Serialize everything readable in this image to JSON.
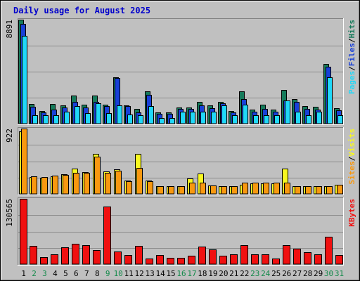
{
  "chart_data": {
    "type": "bar",
    "title": "Daily usage for August 2025",
    "x": [
      "1",
      "2",
      "3",
      "4",
      "5",
      "6",
      "7",
      "8",
      "9",
      "10",
      "11",
      "12",
      "13",
      "14",
      "15",
      "16",
      "17",
      "18",
      "19",
      "20",
      "21",
      "22",
      "23",
      "24",
      "25",
      "26",
      "27",
      "28",
      "29",
      "30",
      "31"
    ],
    "weekend_days": [
      "2",
      "3",
      "9",
      "10",
      "16",
      "17",
      "23",
      "24",
      "30",
      "31"
    ],
    "colors": {
      "hits": "#157a5a",
      "files": "#1840d8",
      "pages": "#20d8f8",
      "visits": "#f8f820",
      "sites": "#f89810",
      "kbytes": "#f01010",
      "weekday_tick": "#000000",
      "weekend_tick": "#138a4a",
      "plot_bg": "#c0c0c0"
    },
    "panels": [
      {
        "id": "hits",
        "max_label": "8891",
        "ylim": [
          0,
          8891
        ],
        "legend": [
          {
            "name": "Pages",
            "color": "#20d8f8"
          },
          {
            "sep": "/"
          },
          {
            "name": "Files",
            "color": "#1840d8"
          },
          {
            "sep": "/"
          },
          {
            "name": "Hits",
            "color": "#157a5a"
          }
        ],
        "series": [
          {
            "name": "Hits",
            "color": "#157a5a",
            "values": [
              8891,
              1670,
              1080,
              1680,
              1570,
              2380,
              1620,
              2380,
              1620,
              3980,
              1590,
              1240,
              2780,
              950,
              950,
              1400,
              1380,
              1860,
              1560,
              1850,
              1100,
              2780,
              1200,
              1600,
              1200,
              2880,
              2080,
              1500,
              1440,
              5120,
              1300
            ]
          },
          {
            "name": "Files",
            "color": "#1840d8",
            "values": [
              8520,
              1450,
              980,
              1200,
              1400,
              1860,
              1400,
              1850,
              1480,
              3900,
              1480,
              990,
              2440,
              850,
              850,
              1260,
              1240,
              1580,
              1350,
              1740,
              980,
              2110,
              1000,
              1280,
              1000,
              2000,
              1850,
              1280,
              1220,
              4860,
              1150
            ]
          },
          {
            "name": "Pages",
            "color": "#20d8f8",
            "values": [
              7480,
              740,
              740,
              750,
              1000,
              1500,
              900,
              1760,
              900,
              1580,
              800,
              750,
              1500,
              490,
              490,
              1000,
              1000,
              1000,
              1000,
              1580,
              750,
              1620,
              740,
              750,
              740,
              1980,
              1000,
              750,
              1000,
              3940,
              750
            ]
          }
        ]
      },
      {
        "id": "visits",
        "max_label": "922",
        "ylim": [
          0,
          922
        ],
        "legend": [
          {
            "name": "Sites",
            "color": "#f89810"
          },
          {
            "sep": "/"
          },
          {
            "name": "Visits",
            "color": "#f8f820"
          }
        ],
        "series": [
          {
            "name": "Visits",
            "color": "#f8f820",
            "values": [
              880,
              240,
              230,
              250,
              280,
              360,
              310,
              570,
              320,
              350,
              190,
              570,
              190,
              110,
              110,
              110,
              220,
              290,
              120,
              110,
              110,
              130,
              150,
              150,
              150,
              360,
              110,
              110,
              110,
              110,
              130
            ]
          },
          {
            "name": "Sites",
            "color": "#f89810",
            "values": [
              922,
              250,
              240,
              260,
              270,
              300,
              300,
              530,
              300,
              330,
              180,
              370,
              180,
              110,
              110,
              110,
              160,
              160,
              120,
              110,
              110,
              160,
              160,
              160,
              160,
              160,
              110,
              110,
              110,
              110,
              130
            ]
          }
        ]
      },
      {
        "id": "kbytes",
        "max_label": "130565",
        "ylim": [
          0,
          130565
        ],
        "legend": [
          {
            "name": "KBytes",
            "color": "#f01010"
          }
        ],
        "series": [
          {
            "name": "KBytes",
            "color": "#f01010",
            "values": [
              130565,
              36700,
              14700,
              19800,
              33000,
              40300,
              38500,
              28400,
              115000,
              24800,
              18300,
              36700,
              11000,
              18300,
              12800,
              12800,
              16500,
              34800,
              29300,
              16500,
              20200,
              38500,
              20200,
              20200,
              11000,
              38500,
              31200,
              23800,
              20200,
              55000,
              18300
            ]
          }
        ]
      }
    ]
  }
}
